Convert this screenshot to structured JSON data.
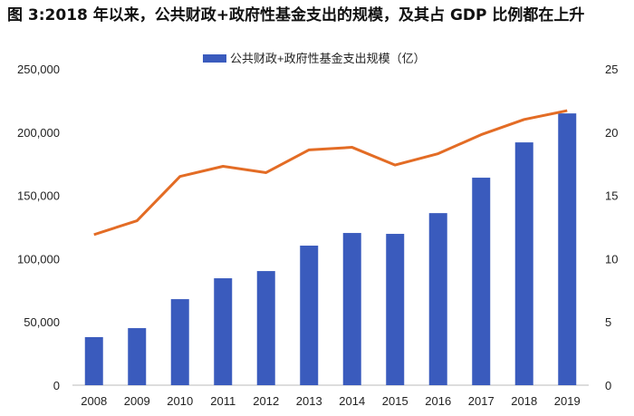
{
  "chart_data": {
    "type": "bar+line",
    "title": "图 3:2018 年以来，公共财政+政府性基金支出的规模，及其占 GDP 比例都在上升",
    "categories": [
      "2008",
      "2009",
      "2010",
      "2011",
      "2012",
      "2013",
      "2014",
      "2015",
      "2016",
      "2017",
      "2018",
      "2019"
    ],
    "series": [
      {
        "name": "公共财政+政府性基金支出规模（亿）",
        "type": "bar",
        "axis": "left",
        "color": "#3a5bbd",
        "values": [
          38000,
          45100,
          68000,
          84500,
          90200,
          110300,
          120300,
          119600,
          136000,
          164000,
          191900,
          214800
        ]
      },
      {
        "type": "line",
        "axis": "right",
        "color": "#e36c25",
        "values": [
          11.9,
          13.0,
          16.5,
          17.3,
          16.8,
          18.6,
          18.8,
          17.4,
          18.3,
          19.8,
          21.0,
          21.7
        ]
      }
    ],
    "y_left": {
      "range": [
        0,
        250000
      ],
      "ticks": [
        "0",
        "50,000",
        "100,000",
        "150,000",
        "200,000",
        "250,000"
      ]
    },
    "y_right": {
      "range": [
        0,
        25
      ],
      "ticks": [
        "0",
        "5",
        "10",
        "15",
        "20",
        "25"
      ]
    },
    "legend_position": "top-center",
    "grid": false
  }
}
